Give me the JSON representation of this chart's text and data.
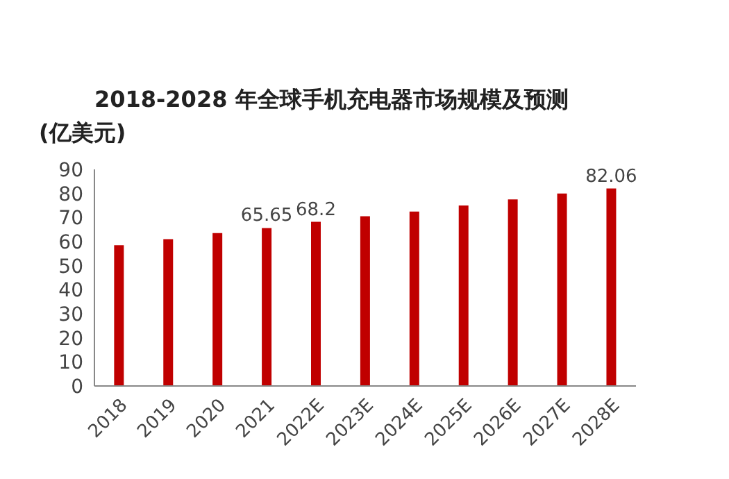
{
  "chart_data": {
    "type": "bar",
    "title": "2018-2028  年全球手机充电器市场规模及预测",
    "ylabel": "(亿美元)",
    "categories": [
      "2018",
      "2019",
      "2020",
      "2021",
      "2022E",
      "2023E",
      "2024E",
      "2025E",
      "2026E",
      "2027E",
      "2028E"
    ],
    "values": [
      58.5,
      61,
      63.5,
      65.65,
      68.2,
      70.5,
      72.5,
      75,
      77.5,
      80,
      82.06
    ],
    "value_labels": [
      null,
      null,
      null,
      "65.65",
      "68.2",
      null,
      null,
      null,
      null,
      null,
      "82.06"
    ],
    "color": "#c00000",
    "ylim": [
      0,
      90
    ],
    "yticks": [
      0,
      10,
      20,
      30,
      40,
      50,
      60,
      70,
      80,
      90
    ],
    "grid": false
  }
}
